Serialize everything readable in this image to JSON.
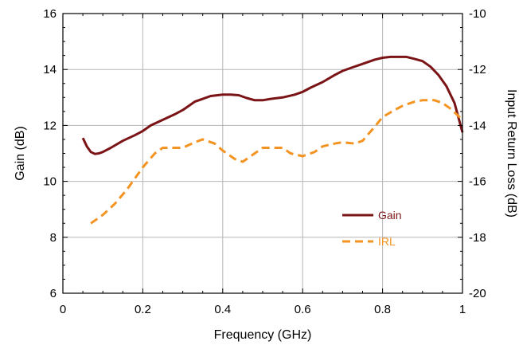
{
  "chart_data": {
    "type": "line",
    "title": "",
    "xlabel": "Frequency (GHz)",
    "ylabel": "Gain (dB)",
    "y2label": "Input Return Loss (dB)",
    "xlim": [
      0,
      1
    ],
    "ylim": [
      6,
      16
    ],
    "y2lim": [
      -20,
      -10
    ],
    "xticks": [
      0,
      0.2,
      0.4,
      0.6,
      0.8,
      1
    ],
    "xtick_labels": [
      "0",
      "0.2",
      "0.4",
      "0.6",
      "0.8",
      "1"
    ],
    "yticks": [
      6,
      8,
      10,
      12,
      14,
      16
    ],
    "ytick_labels": [
      "6",
      "8",
      "10",
      "12",
      "14",
      "16"
    ],
    "y2ticks": [
      -20,
      -18,
      -16,
      -14,
      -12,
      -10
    ],
    "y2tick_labels": [
      "-20",
      "-18",
      "-16",
      "-14",
      "-12",
      "-10"
    ],
    "grid": true,
    "legend": "inside-lower-right",
    "series": [
      {
        "name": "Gain",
        "axis": "left",
        "color": "#7b1416",
        "dash": "solid",
        "x": [
          0.05,
          0.06,
          0.07,
          0.08,
          0.09,
          0.1,
          0.12,
          0.15,
          0.18,
          0.2,
          0.22,
          0.25,
          0.28,
          0.3,
          0.33,
          0.35,
          0.37,
          0.4,
          0.42,
          0.44,
          0.46,
          0.48,
          0.5,
          0.52,
          0.55,
          0.58,
          0.6,
          0.62,
          0.65,
          0.68,
          0.7,
          0.72,
          0.75,
          0.78,
          0.8,
          0.82,
          0.84,
          0.86,
          0.88,
          0.9,
          0.92,
          0.94,
          0.96,
          0.98,
          1.0
        ],
        "y": [
          11.55,
          11.25,
          11.05,
          10.98,
          11.0,
          11.05,
          11.2,
          11.45,
          11.65,
          11.8,
          12.0,
          12.2,
          12.4,
          12.55,
          12.85,
          12.95,
          13.05,
          13.1,
          13.1,
          13.08,
          12.98,
          12.9,
          12.9,
          12.95,
          13.0,
          13.1,
          13.2,
          13.35,
          13.55,
          13.8,
          13.95,
          14.05,
          14.2,
          14.35,
          14.42,
          14.45,
          14.45,
          14.45,
          14.38,
          14.3,
          14.1,
          13.8,
          13.4,
          12.8,
          11.75
        ]
      },
      {
        "name": "IRL",
        "axis": "right",
        "color": "#f39321",
        "dash": "dashed",
        "x": [
          0.07,
          0.1,
          0.13,
          0.16,
          0.2,
          0.23,
          0.25,
          0.28,
          0.3,
          0.33,
          0.35,
          0.38,
          0.4,
          0.43,
          0.45,
          0.48,
          0.5,
          0.53,
          0.55,
          0.57,
          0.6,
          0.63,
          0.65,
          0.68,
          0.7,
          0.73,
          0.75,
          0.78,
          0.8,
          0.83,
          0.85,
          0.88,
          0.9,
          0.93,
          0.95,
          0.97,
          1.0
        ],
        "y": [
          -17.5,
          -17.2,
          -16.8,
          -16.3,
          -15.5,
          -15.0,
          -14.8,
          -14.8,
          -14.8,
          -14.6,
          -14.5,
          -14.65,
          -14.9,
          -15.2,
          -15.3,
          -15.0,
          -14.8,
          -14.8,
          -14.8,
          -15.0,
          -15.1,
          -14.95,
          -14.75,
          -14.65,
          -14.6,
          -14.65,
          -14.55,
          -14.05,
          -13.7,
          -13.45,
          -13.3,
          -13.15,
          -13.1,
          -13.1,
          -13.2,
          -13.4,
          -13.8
        ]
      }
    ]
  }
}
